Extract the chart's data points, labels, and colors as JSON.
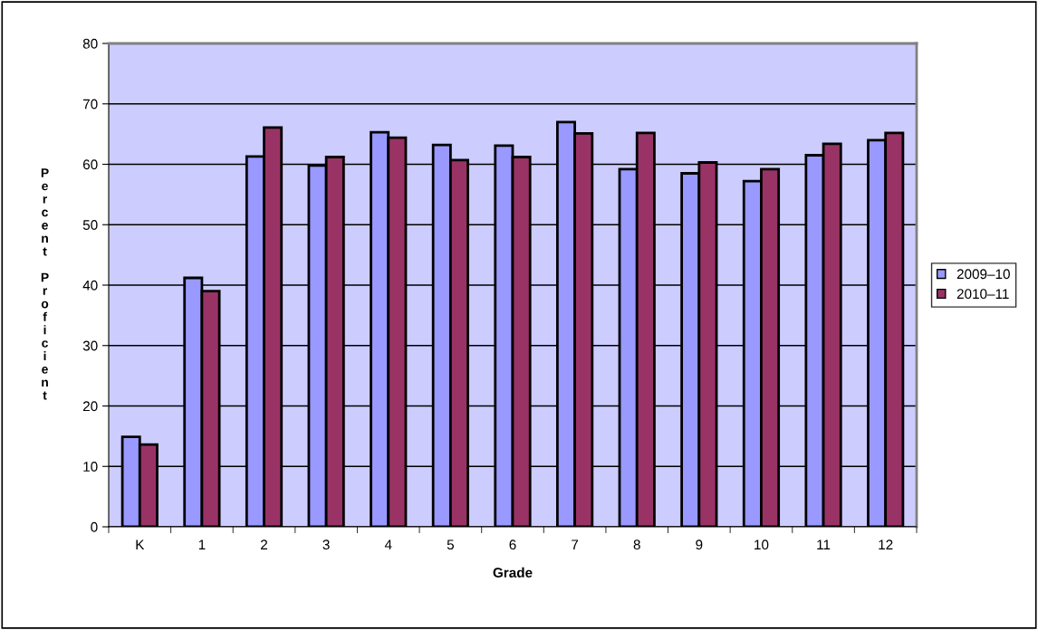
{
  "chart_data": {
    "type": "bar",
    "xlabel": "Grade",
    "ylabel": "Percent Proficient",
    "categories": [
      "K",
      "1",
      "2",
      "3",
      "4",
      "5",
      "6",
      "7",
      "8",
      "9",
      "10",
      "11",
      "12"
    ],
    "series": [
      {
        "name": "2009–10",
        "color": "#9999ff",
        "values": [
          14.9,
          41.2,
          61.3,
          59.8,
          65.3,
          63.2,
          63.1,
          67.0,
          59.2,
          58.5,
          57.2,
          61.5,
          64.0
        ]
      },
      {
        "name": "2010–11",
        "color": "#993366",
        "values": [
          13.6,
          39.0,
          66.1,
          61.2,
          64.4,
          60.7,
          61.2,
          65.1,
          65.2,
          60.3,
          59.2,
          63.4,
          65.2
        ]
      }
    ],
    "ylim": [
      0,
      80
    ],
    "yticks": [
      0,
      10,
      20,
      30,
      40,
      50,
      60,
      70,
      80
    ],
    "grid": "y",
    "legend": "right"
  }
}
